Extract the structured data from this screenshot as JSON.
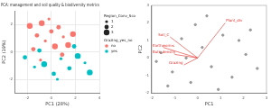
{
  "chart_data": [
    {
      "type": "scatter",
      "title": "PCA: management and soil quality & biodiversity metrics",
      "x_label": "PC1 (28%)",
      "y_label": "PC2 (19%)",
      "xlim": [
        -3,
        4
      ],
      "xticks": [
        -2,
        0,
        2,
        4
      ],
      "ylim": [
        -3,
        3
      ],
      "yticks": [
        -2,
        0,
        2
      ],
      "grid": true,
      "legend": "right",
      "legend_title": "Grazing_yes_no",
      "size_legend": {
        "title": "Region_Conv_Score",
        "values": [
          1,
          2,
          3
        ]
      },
      "series": [
        {
          "name": "no",
          "color": "#f8766d",
          "x": [
            -1.8,
            -1.2,
            -0.8,
            -0.5,
            0.0,
            0.3,
            0.6,
            1.0,
            1.4,
            -1.5,
            -0.2,
            0.9,
            1.8,
            -0.9
          ],
          "y": [
            1.9,
            1.2,
            2.1,
            0.8,
            1.5,
            0.4,
            1.8,
            1.1,
            0.5,
            0.2,
            2.4,
            -0.2,
            1.3,
            -0.6
          ],
          "size": [
            3,
            2,
            3,
            1,
            2,
            3,
            2,
            1,
            3,
            2,
            1,
            2,
            3,
            1
          ]
        },
        {
          "name": "yes",
          "color": "#00bfc4",
          "x": [
            -2.2,
            -1.4,
            -0.6,
            0.2,
            0.8,
            1.5,
            2.2,
            2.8,
            -1.0,
            0.5,
            1.9,
            3.2
          ],
          "y": [
            -0.4,
            -1.1,
            -0.9,
            -1.6,
            -0.5,
            -1.2,
            -0.3,
            -0.8,
            0.1,
            -2.0,
            0.4,
            -1.5
          ],
          "size": [
            2,
            1,
            3,
            2,
            1,
            2,
            3,
            1,
            2,
            1,
            2,
            3
          ]
        }
      ]
    },
    {
      "type": "scatter",
      "x_label": "PC1",
      "y_label": "PC2",
      "xlim": [
        -2,
        3
      ],
      "xticks": [
        -2,
        -1,
        0,
        1,
        2,
        3
      ],
      "ylim": [
        -2,
        3
      ],
      "yticks": [
        -2,
        -1,
        0,
        1,
        2,
        3
      ],
      "grid": false,
      "color": "#999999",
      "x": [
        -1.6,
        -1.1,
        -0.7,
        -0.3,
        0.2,
        0.6,
        1.1,
        1.5,
        2.1,
        2.6,
        -1.3,
        -0.1,
        0.9,
        1.8,
        -0.5,
        0.4,
        2.3,
        -1.8
      ],
      "y": [
        0.3,
        -0.8,
        1.1,
        -1.4,
        0.6,
        -0.5,
        1.3,
        -1.1,
        0.2,
        -0.6,
        -1.6,
        1.9,
        -1.8,
        1.0,
        0.0,
        2.4,
        1.6,
        -0.2
      ],
      "arrows": {
        "color": "#e0302a",
        "labels": [
          "Soil_C",
          "Earthworms",
          "Bulk_density",
          "Plant_div",
          "Grazing"
        ],
        "x": [
          -1.2,
          -1.5,
          -1.0,
          1.2,
          -0.6
        ],
        "y": [
          1.2,
          0.6,
          0.2,
          2.0,
          -0.4
        ]
      }
    }
  ]
}
